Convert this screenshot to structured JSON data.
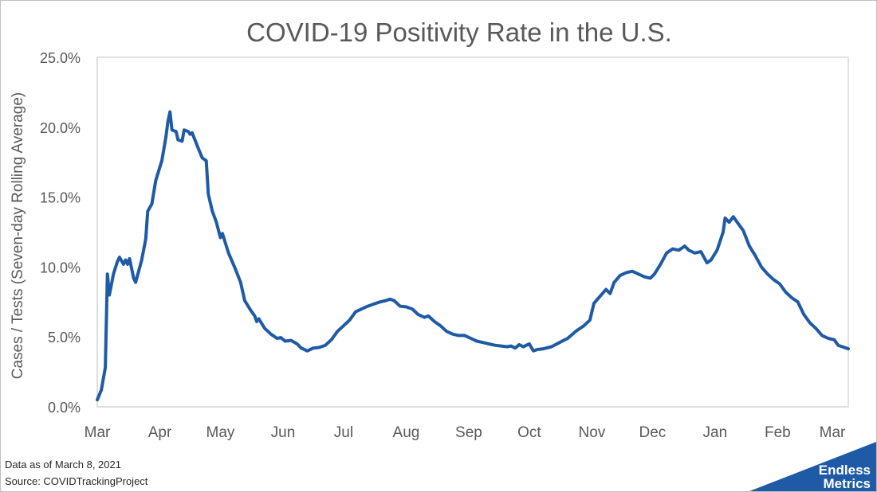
{
  "chart_data": {
    "type": "line",
    "title": "COVID-19 Positivity Rate in the U.S.",
    "xlabel": "",
    "ylabel": "Cases / Tests  (Seven-day Rolling Average)",
    "x_ticks": [
      "Mar",
      "Apr",
      "May",
      "Jun",
      "Jul",
      "Aug",
      "Sep",
      "Oct",
      "Nov",
      "Dec",
      "Jan",
      "Feb",
      "Mar"
    ],
    "y_ticks": [
      "0.0%",
      "5.0%",
      "10.0%",
      "15.0%",
      "20.0%",
      "25.0%"
    ],
    "ylim": [
      0,
      25
    ],
    "xlim": [
      "2020-03-01",
      "2021-03-08"
    ],
    "grid": false,
    "legend": "none",
    "series": [
      {
        "color": "#1f5aa6",
        "points": [
          [
            "2020-03-01",
            0.5
          ],
          [
            "2020-03-03",
            1.2
          ],
          [
            "2020-03-05",
            2.8
          ],
          [
            "2020-03-06",
            9.5
          ],
          [
            "2020-03-07",
            8.0
          ],
          [
            "2020-03-09",
            9.5
          ],
          [
            "2020-03-11",
            10.4
          ],
          [
            "2020-03-12",
            10.7
          ],
          [
            "2020-03-14",
            10.2
          ],
          [
            "2020-03-15",
            10.5
          ],
          [
            "2020-03-16",
            10.2
          ],
          [
            "2020-03-17",
            10.6
          ],
          [
            "2020-03-19",
            9.2
          ],
          [
            "2020-03-20",
            8.9
          ],
          [
            "2020-03-23",
            10.5
          ],
          [
            "2020-03-25",
            12.0
          ],
          [
            "2020-03-26",
            14.0
          ],
          [
            "2020-03-28",
            14.5
          ],
          [
            "2020-03-30",
            16.2
          ],
          [
            "2020-04-02",
            17.6
          ],
          [
            "2020-04-04",
            19.3
          ],
          [
            "2020-04-05",
            20.4
          ],
          [
            "2020-04-06",
            21.1
          ],
          [
            "2020-04-07",
            19.8
          ],
          [
            "2020-04-09",
            19.7
          ],
          [
            "2020-04-10",
            19.1
          ],
          [
            "2020-04-12",
            19.0
          ],
          [
            "2020-04-13",
            19.8
          ],
          [
            "2020-04-15",
            19.7
          ],
          [
            "2020-04-16",
            19.5
          ],
          [
            "2020-04-17",
            19.6
          ],
          [
            "2020-04-20",
            18.5
          ],
          [
            "2020-04-22",
            17.8
          ],
          [
            "2020-04-24",
            17.6
          ],
          [
            "2020-04-25",
            15.2
          ],
          [
            "2020-04-27",
            14.0
          ],
          [
            "2020-04-29",
            13.2
          ],
          [
            "2020-05-01",
            12.1
          ],
          [
            "2020-05-02",
            12.4
          ],
          [
            "2020-05-05",
            11.0
          ],
          [
            "2020-05-08",
            10.0
          ],
          [
            "2020-05-11",
            8.9
          ],
          [
            "2020-05-13",
            7.6
          ],
          [
            "2020-05-16",
            6.9
          ],
          [
            "2020-05-18",
            6.5
          ],
          [
            "2020-05-19",
            6.1
          ],
          [
            "2020-05-20",
            6.3
          ],
          [
            "2020-05-23",
            5.6
          ],
          [
            "2020-05-26",
            5.2
          ],
          [
            "2020-05-29",
            4.9
          ],
          [
            "2020-05-31",
            4.95
          ],
          [
            "2020-06-02",
            4.7
          ],
          [
            "2020-06-05",
            4.75
          ],
          [
            "2020-06-08",
            4.5
          ],
          [
            "2020-06-10",
            4.2
          ],
          [
            "2020-06-13",
            4.0
          ],
          [
            "2020-06-16",
            4.2
          ],
          [
            "2020-06-19",
            4.25
          ],
          [
            "2020-06-22",
            4.4
          ],
          [
            "2020-06-25",
            4.8
          ],
          [
            "2020-06-28",
            5.4
          ],
          [
            "2020-07-01",
            5.8
          ],
          [
            "2020-07-04",
            6.2
          ],
          [
            "2020-07-07",
            6.8
          ],
          [
            "2020-07-10",
            7.0
          ],
          [
            "2020-07-13",
            7.2
          ],
          [
            "2020-07-16",
            7.35
          ],
          [
            "2020-07-19",
            7.5
          ],
          [
            "2020-07-22",
            7.6
          ],
          [
            "2020-07-24",
            7.7
          ],
          [
            "2020-07-26",
            7.6
          ],
          [
            "2020-07-29",
            7.2
          ],
          [
            "2020-08-01",
            7.15
          ],
          [
            "2020-08-04",
            7.0
          ],
          [
            "2020-08-07",
            6.6
          ],
          [
            "2020-08-10",
            6.4
          ],
          [
            "2020-08-12",
            6.5
          ],
          [
            "2020-08-15",
            6.1
          ],
          [
            "2020-08-18",
            5.8
          ],
          [
            "2020-08-21",
            5.4
          ],
          [
            "2020-08-24",
            5.2
          ],
          [
            "2020-08-27",
            5.1
          ],
          [
            "2020-08-30",
            5.1
          ],
          [
            "2020-09-02",
            4.9
          ],
          [
            "2020-09-05",
            4.7
          ],
          [
            "2020-09-08",
            4.6
          ],
          [
            "2020-09-11",
            4.5
          ],
          [
            "2020-09-14",
            4.4
          ],
          [
            "2020-09-17",
            4.35
          ],
          [
            "2020-09-20",
            4.3
          ],
          [
            "2020-09-22",
            4.35
          ],
          [
            "2020-09-24",
            4.2
          ],
          [
            "2020-09-26",
            4.45
          ],
          [
            "2020-09-28",
            4.3
          ],
          [
            "2020-10-01",
            4.5
          ],
          [
            "2020-10-03",
            4.0
          ],
          [
            "2020-10-05",
            4.1
          ],
          [
            "2020-10-08",
            4.15
          ],
          [
            "2020-10-12",
            4.3
          ],
          [
            "2020-10-16",
            4.6
          ],
          [
            "2020-10-20",
            4.9
          ],
          [
            "2020-10-24",
            5.4
          ],
          [
            "2020-10-28",
            5.8
          ],
          [
            "2020-10-31",
            6.2
          ],
          [
            "2020-11-02",
            7.4
          ],
          [
            "2020-11-05",
            7.9
          ],
          [
            "2020-11-08",
            8.4
          ],
          [
            "2020-11-10",
            8.1
          ],
          [
            "2020-11-12",
            8.9
          ],
          [
            "2020-11-15",
            9.4
          ],
          [
            "2020-11-18",
            9.6
          ],
          [
            "2020-11-21",
            9.7
          ],
          [
            "2020-11-24",
            9.5
          ],
          [
            "2020-11-27",
            9.3
          ],
          [
            "2020-11-30",
            9.2
          ],
          [
            "2020-12-02",
            9.5
          ],
          [
            "2020-12-05",
            10.2
          ],
          [
            "2020-12-08",
            11.0
          ],
          [
            "2020-12-11",
            11.3
          ],
          [
            "2020-12-14",
            11.2
          ],
          [
            "2020-12-17",
            11.5
          ],
          [
            "2020-12-19",
            11.2
          ],
          [
            "2020-12-22",
            11.0
          ],
          [
            "2020-12-25",
            11.1
          ],
          [
            "2020-12-28",
            10.3
          ],
          [
            "2020-12-30",
            10.5
          ],
          [
            "2021-01-02",
            11.2
          ],
          [
            "2021-01-05",
            12.5
          ],
          [
            "2021-01-06",
            13.5
          ],
          [
            "2021-01-08",
            13.2
          ],
          [
            "2021-01-10",
            13.6
          ],
          [
            "2021-01-12",
            13.2
          ],
          [
            "2021-01-15",
            12.6
          ],
          [
            "2021-01-18",
            11.5
          ],
          [
            "2021-01-21",
            10.8
          ],
          [
            "2021-01-24",
            10.0
          ],
          [
            "2021-01-27",
            9.5
          ],
          [
            "2021-01-30",
            9.1
          ],
          [
            "2021-02-02",
            8.8
          ],
          [
            "2021-02-05",
            8.2
          ],
          [
            "2021-02-08",
            7.8
          ],
          [
            "2021-02-11",
            7.5
          ],
          [
            "2021-02-14",
            6.6
          ],
          [
            "2021-02-17",
            6.0
          ],
          [
            "2021-02-20",
            5.6
          ],
          [
            "2021-02-23",
            5.1
          ],
          [
            "2021-02-26",
            4.9
          ],
          [
            "2021-03-01",
            4.8
          ],
          [
            "2021-03-03",
            4.4
          ],
          [
            "2021-03-05",
            4.3
          ],
          [
            "2021-03-08",
            4.15
          ]
        ]
      }
    ]
  },
  "footnotes": {
    "data_as_of": "Data as of March 8, 2021",
    "source": "Source: COVIDTrackingProject"
  },
  "brand": {
    "line1": "Endless",
    "line2": "Metrics",
    "color": "#1f5aa6"
  },
  "colors": {
    "axis": "#d9d9d9",
    "text": "#595959",
    "title": "#595959"
  }
}
